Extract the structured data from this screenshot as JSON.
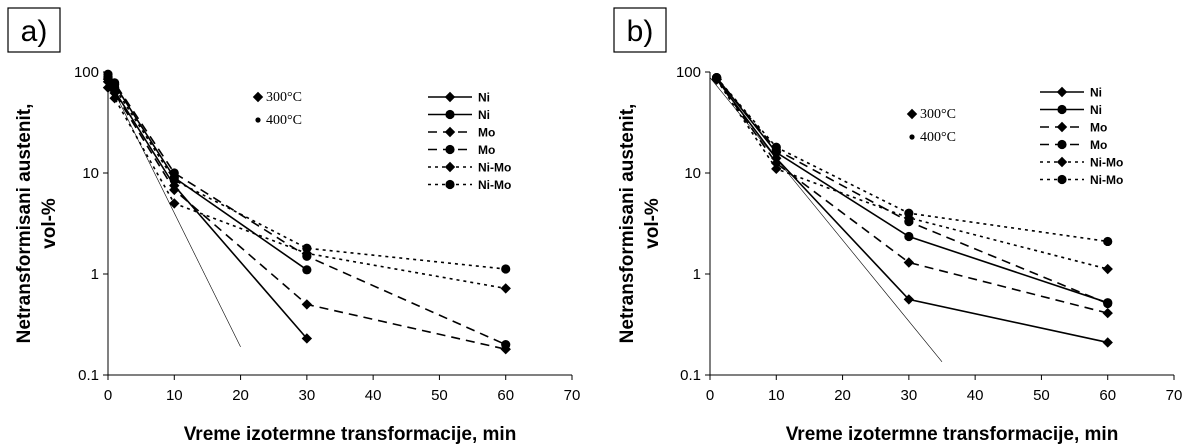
{
  "chart_data": [
    {
      "type": "line",
      "panel_label": "a)",
      "xlabel": "Vreme izotermne transformacije, min",
      "ylabel": [
        "Netransformisani austenit,",
        "vol-%"
      ],
      "xlim": [
        0,
        70
      ],
      "ylim": [
        0.1,
        100
      ],
      "yscale": "log",
      "xticks": [
        "0",
        "10",
        "20",
        "30",
        "40",
        "50",
        "60",
        "70"
      ],
      "yticks": [
        "0.1",
        "1",
        "10",
        "100"
      ],
      "temperature_key": [
        {
          "marker": "diamond",
          "label": "300°C"
        },
        {
          "marker": "circle",
          "label": "400°C"
        }
      ],
      "legend_position": "top-right",
      "series": [
        {
          "name": "Ni",
          "marker": "diamond",
          "style": "solid",
          "x": [
            0,
            1,
            10,
            30
          ],
          "y": [
            85,
            65,
            7.5,
            0.23
          ]
        },
        {
          "name": "Ni",
          "marker": "circle",
          "style": "solid",
          "x": [
            0,
            1,
            10,
            30
          ],
          "y": [
            90,
            75,
            9,
            1.1
          ]
        },
        {
          "name": "Mo",
          "marker": "diamond",
          "style": "dashed",
          "x": [
            0,
            1,
            10,
            30,
            60
          ],
          "y": [
            80,
            62,
            6.8,
            0.5,
            0.18
          ]
        },
        {
          "name": "Mo",
          "marker": "circle",
          "style": "dashed",
          "x": [
            0,
            1,
            10,
            30,
            60
          ],
          "y": [
            95,
            78,
            10,
            1.5,
            0.2
          ]
        },
        {
          "name": "Ni-Mo",
          "marker": "diamond",
          "style": "dotted",
          "x": [
            0,
            1,
            10,
            30,
            60
          ],
          "y": [
            70,
            55,
            5,
            1.6,
            0.72
          ]
        },
        {
          "name": "Ni-Mo",
          "marker": "circle",
          "style": "dotted",
          "x": [
            0,
            1,
            10,
            30,
            60
          ],
          "y": [
            88,
            70,
            8.5,
            1.8,
            1.12
          ]
        },
        {
          "name": "",
          "marker": "none",
          "style": "thin",
          "x": [
            0,
            20
          ],
          "y": [
            85,
            0.19
          ]
        }
      ]
    },
    {
      "type": "line",
      "panel_label": "b)",
      "xlabel": "Vreme izotermne transformacije, min",
      "ylabel": [
        "Netransformisani austenit,",
        "vol-%"
      ],
      "xlim": [
        0,
        70
      ],
      "ylim": [
        0.1,
        100
      ],
      "yscale": "log",
      "xticks": [
        "0",
        "10",
        "20",
        "30",
        "40",
        "50",
        "60",
        "70"
      ],
      "yticks": [
        "0.1",
        "1",
        "10",
        "100"
      ],
      "temperature_key": [
        {
          "marker": "diamond",
          "label": "300°C"
        },
        {
          "marker": "circle",
          "label": "400°C"
        }
      ],
      "legend_position": "top-right",
      "series": [
        {
          "name": "Ni",
          "marker": "diamond",
          "style": "solid",
          "x": [
            1,
            10,
            30,
            60
          ],
          "y": [
            85,
            14,
            0.56,
            0.21
          ]
        },
        {
          "name": "Ni",
          "marker": "circle",
          "style": "solid",
          "x": [
            1,
            10,
            30,
            60
          ],
          "y": [
            88,
            16,
            2.35,
            0.52
          ]
        },
        {
          "name": "Mo",
          "marker": "diamond",
          "style": "dashed",
          "x": [
            1,
            10,
            30,
            60
          ],
          "y": [
            85,
            12.5,
            1.3,
            0.41
          ]
        },
        {
          "name": "Mo",
          "marker": "circle",
          "style": "dashed",
          "x": [
            1,
            10,
            30,
            60
          ],
          "y": [
            88,
            17,
            3.3,
            0.51
          ]
        },
        {
          "name": "Ni-Mo",
          "marker": "diamond",
          "style": "dotted",
          "x": [
            1,
            10,
            30,
            60
          ],
          "y": [
            84,
            11,
            3.6,
            1.12
          ]
        },
        {
          "name": "Ni-Mo",
          "marker": "circle",
          "style": "dotted",
          "x": [
            1,
            10,
            30,
            60
          ],
          "y": [
            88,
            18,
            4,
            2.1
          ]
        },
        {
          "name": "",
          "marker": "none",
          "style": "thin",
          "x": [
            0,
            35
          ],
          "y": [
            88,
            0.135
          ]
        }
      ]
    }
  ]
}
